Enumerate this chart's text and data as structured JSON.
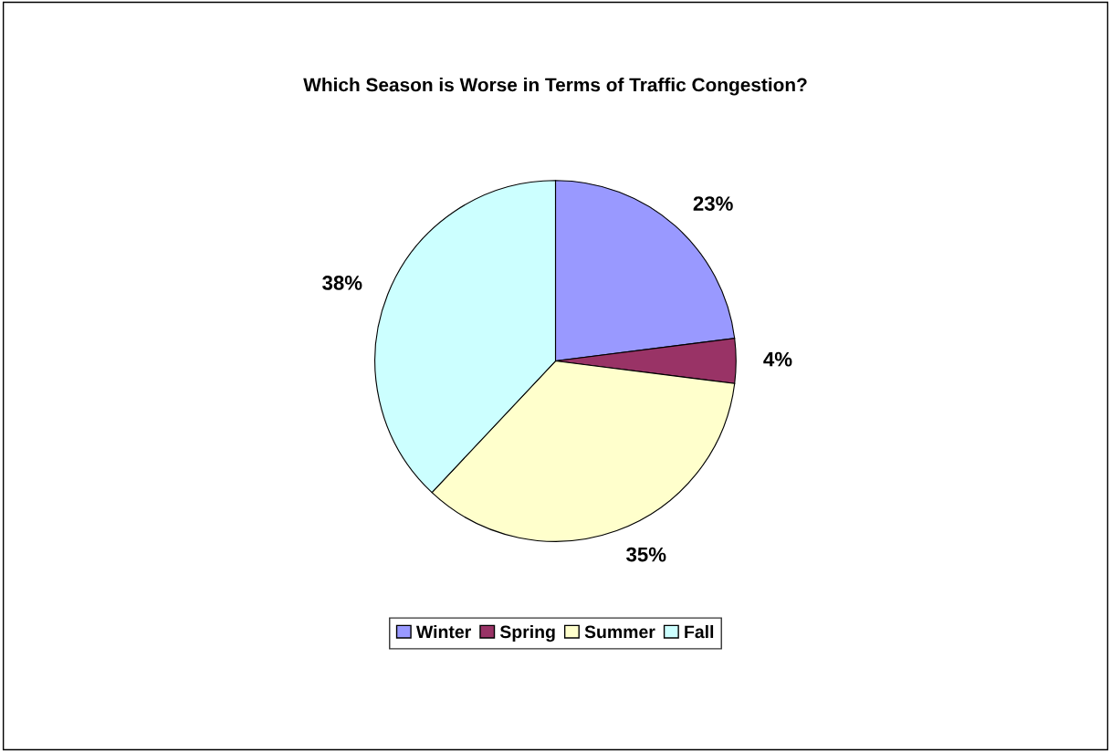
{
  "chart_data": {
    "type": "pie",
    "title": "Which Season is Worse in Terms of Traffic Congestion?",
    "categories": [
      "Winter",
      "Spring",
      "Summer",
      "Fall"
    ],
    "values": [
      23,
      4,
      35,
      38
    ],
    "value_labels": [
      "23%",
      "4%",
      "35%",
      "38%"
    ],
    "colors": [
      "#9999ff",
      "#993366",
      "#ffffcc",
      "#ccffff"
    ],
    "legend": "bottom"
  }
}
